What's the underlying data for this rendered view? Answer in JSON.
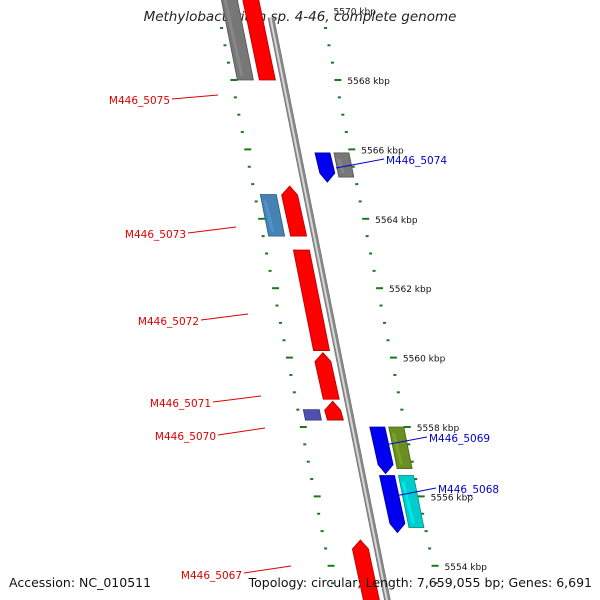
{
  "title": "Methylobacterium sp. 4-46, complete genome",
  "footer": {
    "accession": "Accession: NC_010511",
    "summary": "Topology: circular; Length: 7,659,055 bp; Genes: 6,691"
  },
  "colors": {
    "forward_label": "#dd0000",
    "reverse_label": "#0000cc",
    "tick": "#1a7a1a",
    "backbone": "#888888"
  },
  "chart_data": {
    "type": "genome-map",
    "axis_unit": "kbp",
    "scale_labels": [
      "5570 kbp",
      "5568 kbp",
      "5566 kbp",
      "5564 kbp",
      "5562 kbp",
      "5560 kbp",
      "5558 kbp",
      "5556 kbp",
      "5554 kbp"
    ],
    "scale_values": [
      5570,
      5568,
      5566,
      5564,
      5562,
      5560,
      5558,
      5556,
      5554
    ],
    "gene_labels": [
      {
        "label": "M446_5075",
        "strand": "forward"
      },
      {
        "label": "M446_5074",
        "strand": "reverse"
      },
      {
        "label": "M446_5073",
        "strand": "forward"
      },
      {
        "label": "M446_5072",
        "strand": "forward"
      },
      {
        "label": "M446_5071",
        "strand": "forward"
      },
      {
        "label": "M446_5070",
        "strand": "forward"
      },
      {
        "label": "M446_5069",
        "strand": "reverse"
      },
      {
        "label": "M446_5068",
        "strand": "reverse"
      },
      {
        "label": "M446_5067",
        "strand": "forward"
      }
    ],
    "features": [
      {
        "start": 5571.2,
        "end": 5568.0,
        "ring": "outer-fwd",
        "color": "#777777",
        "dir": "none"
      },
      {
        "start": 5571.2,
        "end": 5568.0,
        "ring": "inner-fwd",
        "color": "#ff0000",
        "dir": "up"
      },
      {
        "start": 5565.9,
        "end": 5565.2,
        "ring": "inner-rev",
        "color": "#0000ee",
        "dir": "down"
      },
      {
        "start": 5565.9,
        "end": 5565.2,
        "ring": "outer-rev",
        "color": "#777777",
        "dir": "none"
      },
      {
        "start": 5564.7,
        "end": 5563.5,
        "ring": "outer-fwd",
        "color": "#4682b4",
        "dir": "none"
      },
      {
        "start": 5564.8,
        "end": 5563.5,
        "ring": "inner-fwd",
        "color": "#ff0000",
        "dir": "up"
      },
      {
        "start": 5563.1,
        "end": 5560.2,
        "ring": "inner-fwd",
        "color": "#ff0000",
        "dir": "none"
      },
      {
        "start": 5560.0,
        "end": 5558.8,
        "ring": "inner-fwd",
        "color": "#ff0000",
        "dir": "up"
      },
      {
        "start": 5558.5,
        "end": 5558.2,
        "ring": "outer-fwd",
        "color": "#5050b0",
        "dir": "none"
      },
      {
        "start": 5558.6,
        "end": 5558.2,
        "ring": "inner-fwd",
        "color": "#ff0000",
        "dir": "up"
      },
      {
        "start": 5558.0,
        "end": 5556.8,
        "ring": "inner-rev",
        "color": "#0000ee",
        "dir": "down"
      },
      {
        "start": 5558.0,
        "end": 5556.8,
        "ring": "outer-rev",
        "color": "#6b8e23",
        "dir": "none"
      },
      {
        "start": 5556.6,
        "end": 5555.1,
        "ring": "inner-rev",
        "color": "#0000ee",
        "dir": "down"
      },
      {
        "start": 5556.6,
        "end": 5555.1,
        "ring": "outer-rev",
        "color": "#00cccc",
        "dir": "none"
      },
      {
        "start": 5554.6,
        "end": 5553.0,
        "ring": "inner-fwd",
        "color": "#ff0000",
        "dir": "up"
      }
    ]
  }
}
